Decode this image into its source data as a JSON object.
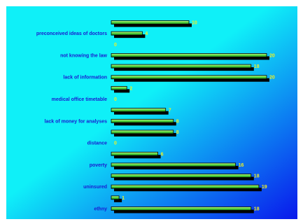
{
  "chart_data": {
    "type": "bar",
    "orientation": "horizontal",
    "categories": [
      "",
      "preconceived ideas of doctors",
      "",
      "not knowing the law",
      "",
      "lack of information",
      "",
      "medical office timetable",
      "",
      "lack of money for analyses",
      "",
      "distance",
      "",
      "poverty",
      "",
      "uninsured",
      "",
      "ethny"
    ],
    "values": [
      10,
      4,
      0,
      20,
      18,
      20,
      2,
      0,
      7,
      8,
      8,
      0,
      6,
      16,
      18,
      19,
      1,
      18
    ],
    "xlim": [
      0,
      20
    ],
    "grid": false,
    "legend": false,
    "colors": {
      "background_top": "#0ff0f8",
      "background_bottom": "#0a18ec",
      "bar_light": "#c8f890",
      "bar_mid": "#4cd038",
      "bar_dark": "#1a7a12",
      "bar_outline": "#000000",
      "bar_shadow": "#000000",
      "category_text": "#1a1ad0",
      "value_text": "#f2f020"
    }
  }
}
